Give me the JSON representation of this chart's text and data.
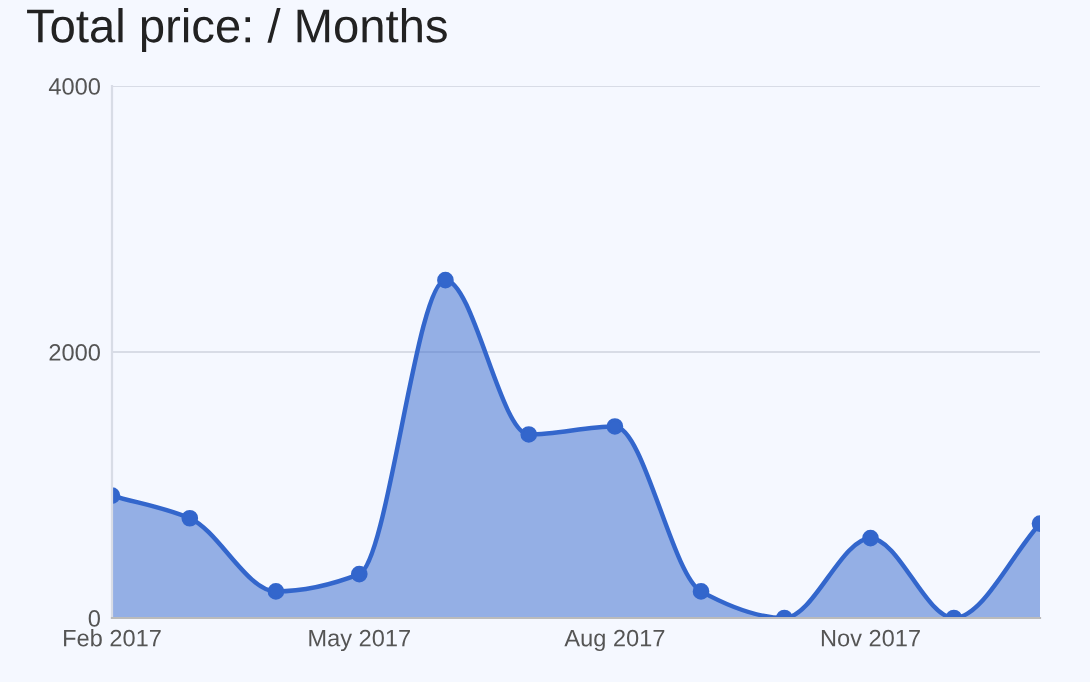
{
  "chart_data": {
    "type": "area",
    "title": "Total price: / Months",
    "x": [
      "2017-02",
      "2017-03",
      "2017-04",
      "2017-05",
      "2017-06",
      "2017-07",
      "2017-08",
      "2017-09",
      "2017-10",
      "2017-11",
      "2017-12",
      "2018-01"
    ],
    "series": [
      {
        "color": "#3366cc",
        "values": [
          920,
          750,
          200,
          330,
          2540,
          1380,
          1440,
          200,
          0,
          600,
          0,
          710
        ]
      }
    ],
    "xlim": [
      "2017-02",
      "2018-01"
    ],
    "xticks": [
      {
        "value": "2017-02",
        "label": "Feb 2017"
      },
      {
        "value": "2017-05",
        "label": "May 2017"
      },
      {
        "value": "2017-08",
        "label": "Aug 2017"
      },
      {
        "value": "2017-11",
        "label": "Nov 2017"
      }
    ],
    "ylim": [
      0,
      4000
    ],
    "yticks": [
      0,
      2000,
      4000
    ],
    "grid": "y",
    "marker": "circle",
    "line_style": "solid",
    "legend": false
  }
}
